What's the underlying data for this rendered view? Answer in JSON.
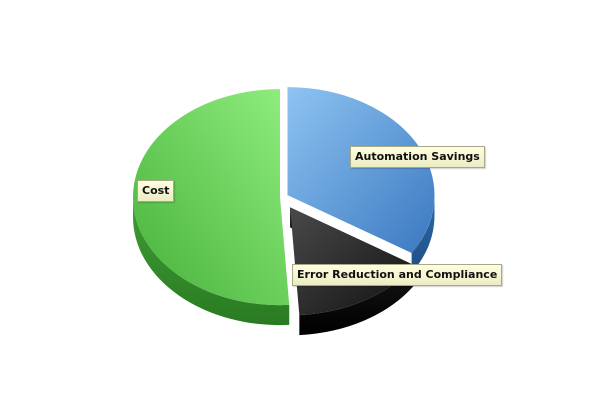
{
  "chart_data": {
    "type": "pie",
    "style": "3d-exploded",
    "categories": [
      "Automation Savings",
      "Error Reduction and Compliance",
      "Cost"
    ],
    "values": [
      34,
      15,
      51
    ],
    "colors": [
      "#4a90d9",
      "#1f1f1f",
      "#5cc84f"
    ],
    "legend": "none",
    "slice_labels": {
      "automation": "Automation Savings",
      "error": "Error Reduction and Compliance",
      "cost": "Cost"
    }
  }
}
